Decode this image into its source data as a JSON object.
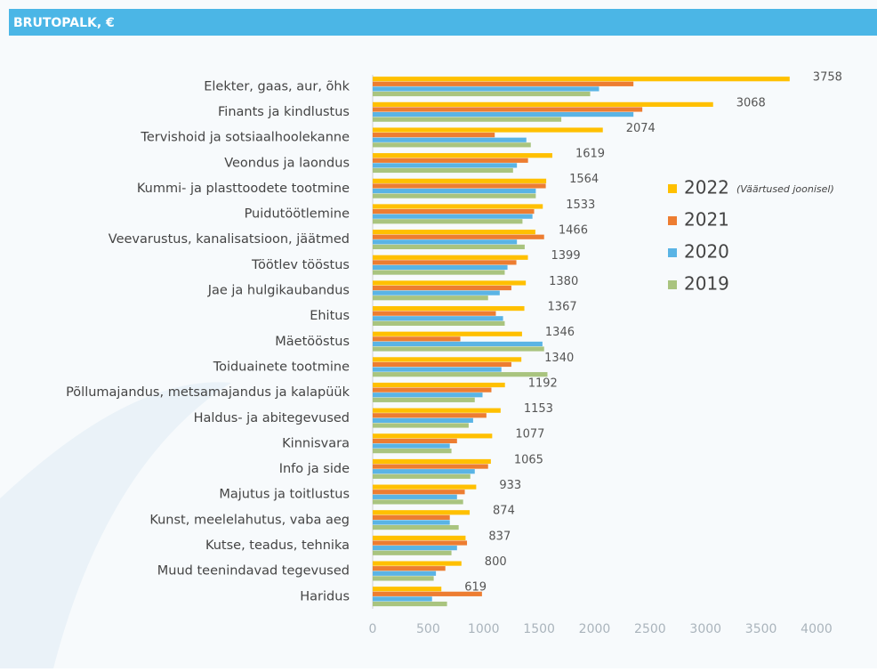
{
  "header": {
    "title": "BRUTOPALK, €"
  },
  "chart_data": {
    "type": "bar",
    "orientation": "horizontal",
    "categories": [
      "Elekter, gaas, aur, õhk",
      "Finants ja kindlustus",
      "Tervishoid ja sotsiaalhoolekanne",
      "Veondus ja laondus",
      "Kummi- ja plasttoodete tootmine",
      "Puidutöötlemine",
      "Veevarustus, kanalisatsioon, jäätmed",
      "Töötlev tööstus",
      "Jae ja hulgikaubandus",
      "Ehitus",
      "Mäetööstus",
      "Toiduainete tootmine",
      "Põllumajandus, metsamajandus ja kalapüük",
      "Haldus- ja abitegevused",
      "Kinnisvara",
      "Info ja side",
      "Majutus ja toitlustus",
      "Kunst, meelelahutus, vaba aeg",
      "Kutse, teadus, tehnika",
      "Muud teenindavad tegevused",
      "Haridus"
    ],
    "series": [
      {
        "name": "2022",
        "color": "#ffc000",
        "labels": true,
        "values": [
          3758,
          3068,
          2074,
          1619,
          1564,
          1533,
          1466,
          1399,
          1380,
          1367,
          1346,
          1340,
          1192,
          1153,
          1077,
          1065,
          933,
          874,
          837,
          800,
          619
        ]
      },
      {
        "name": "2021",
        "color": "#ed7d31",
        "values": [
          2350,
          2430,
          1100,
          1400,
          1560,
          1455,
          1545,
          1295,
          1250,
          1110,
          790,
          1250,
          1070,
          1025,
          760,
          1040,
          830,
          695,
          850,
          655,
          985
        ]
      },
      {
        "name": "2020",
        "color": "#5ab4e5",
        "values": [
          2040,
          2350,
          1385,
          1300,
          1470,
          1440,
          1300,
          1215,
          1145,
          1175,
          1530,
          1160,
          990,
          905,
          695,
          920,
          760,
          695,
          760,
          570,
          535
        ]
      },
      {
        "name": "2019",
        "color": "#a9c47f",
        "values": [
          1960,
          1700,
          1425,
          1265,
          1470,
          1350,
          1370,
          1190,
          1040,
          1190,
          1545,
          1575,
          920,
          865,
          710,
          880,
          815,
          775,
          710,
          550,
          670
        ]
      }
    ],
    "legend_note": "(Väärtused joonisel)",
    "xlim": [
      0,
      4000
    ],
    "xticks": [
      0,
      500,
      1000,
      1500,
      2000,
      2500,
      3000,
      3500,
      4000
    ]
  }
}
